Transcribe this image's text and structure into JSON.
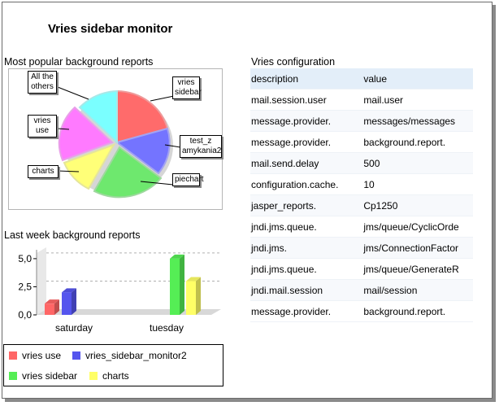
{
  "page": {
    "title": "Vries sidebar monitor"
  },
  "pie": {
    "heading": "Most popular background reports",
    "callouts": {
      "all_others": "All the others",
      "vries_sidebar": "vries sidebar",
      "vries_use": "vries use",
      "test_z": "test_z amykania2",
      "charts": "charts",
      "piechart": "piechart"
    }
  },
  "chart_data": [
    {
      "type": "pie",
      "title": "Most popular background reports",
      "slices": [
        {
          "label": "vries sidebar",
          "color": "#ff6666"
        },
        {
          "label": "test_zamykania2",
          "color": "#7070ff"
        },
        {
          "label": "piechart",
          "color": "#66ee66"
        },
        {
          "label": "charts",
          "color": "#ffff77"
        },
        {
          "label": "vries use",
          "color": "#ff77ff"
        },
        {
          "label": "All the others",
          "color": "#77ffff"
        }
      ]
    },
    {
      "type": "bar",
      "title": "Last week background reports",
      "categories": [
        "saturday",
        "tuesday"
      ],
      "ylim": [
        0,
        5.5
      ],
      "yticks": [
        "0,0",
        "2,5",
        "5,0"
      ],
      "series": [
        {
          "name": "vries use",
          "color": "#ff6666",
          "values": [
            1,
            0
          ]
        },
        {
          "name": "vries_sidebar_monitor2",
          "color": "#5555ee",
          "values": [
            2,
            0
          ]
        },
        {
          "name": "vries sidebar",
          "color": "#55ee55",
          "values": [
            0,
            5
          ]
        },
        {
          "name": "charts",
          "color": "#ffff66",
          "values": [
            0,
            3
          ]
        }
      ]
    }
  ],
  "bar": {
    "heading": "Last week background reports"
  },
  "config": {
    "heading": "Vries configuration",
    "header": {
      "description": "description",
      "value": "value"
    },
    "rows": [
      {
        "description": "mail.session.user",
        "value": "mail.user"
      },
      {
        "description": "message.provider.",
        "value": "messages/messages"
      },
      {
        "description": "message.provider.",
        "value": "background.report."
      },
      {
        "description": "mail.send.delay",
        "value": "500"
      },
      {
        "description": "configuration.cache.",
        "value": "10"
      },
      {
        "description": "jasper_reports.",
        "value": "Cp1250"
      },
      {
        "description": "jndi.jms.queue.",
        "value": "jms/queue/CyclicOrde"
      },
      {
        "description": "jndi.jms.",
        "value": "jms/ConnectionFactor"
      },
      {
        "description": "jndi.jms.queue.",
        "value": "jms/queue/GenerateR"
      },
      {
        "description": "jndi.mail.session",
        "value": "mail/session"
      },
      {
        "description": "message.provider.",
        "value": "background.report."
      }
    ]
  }
}
